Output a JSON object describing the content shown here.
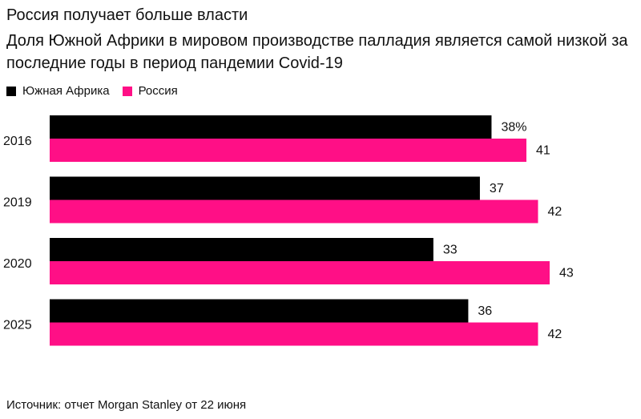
{
  "title": "Россия получает больше власти",
  "subtitle": "Доля Южной Африки в мировом производстве палладия является самой низкой за последние годы в период пандемии Covid-19",
  "source": "Источник: отчет Morgan Stanley от 22 июня",
  "colors": {
    "south_africa": "#000000",
    "russia": "#ff0f86",
    "text": "#111111"
  },
  "chart_data": {
    "type": "bar",
    "orientation": "horizontal",
    "categories": [
      "2016",
      "2019",
      "2020",
      "2025"
    ],
    "series": [
      {
        "name": "Южная Африка",
        "values": [
          38,
          37,
          33,
          36
        ],
        "color": "#000000"
      },
      {
        "name": "Россия",
        "values": [
          41,
          42,
          43,
          42
        ],
        "color": "#ff0f86"
      }
    ],
    "value_labels": [
      [
        "38%",
        "37",
        "33",
        "36"
      ],
      [
        "41",
        "42",
        "43",
        "42"
      ]
    ],
    "xlim": [
      0,
      43
    ],
    "legend_position": "top-left",
    "grid": false
  }
}
